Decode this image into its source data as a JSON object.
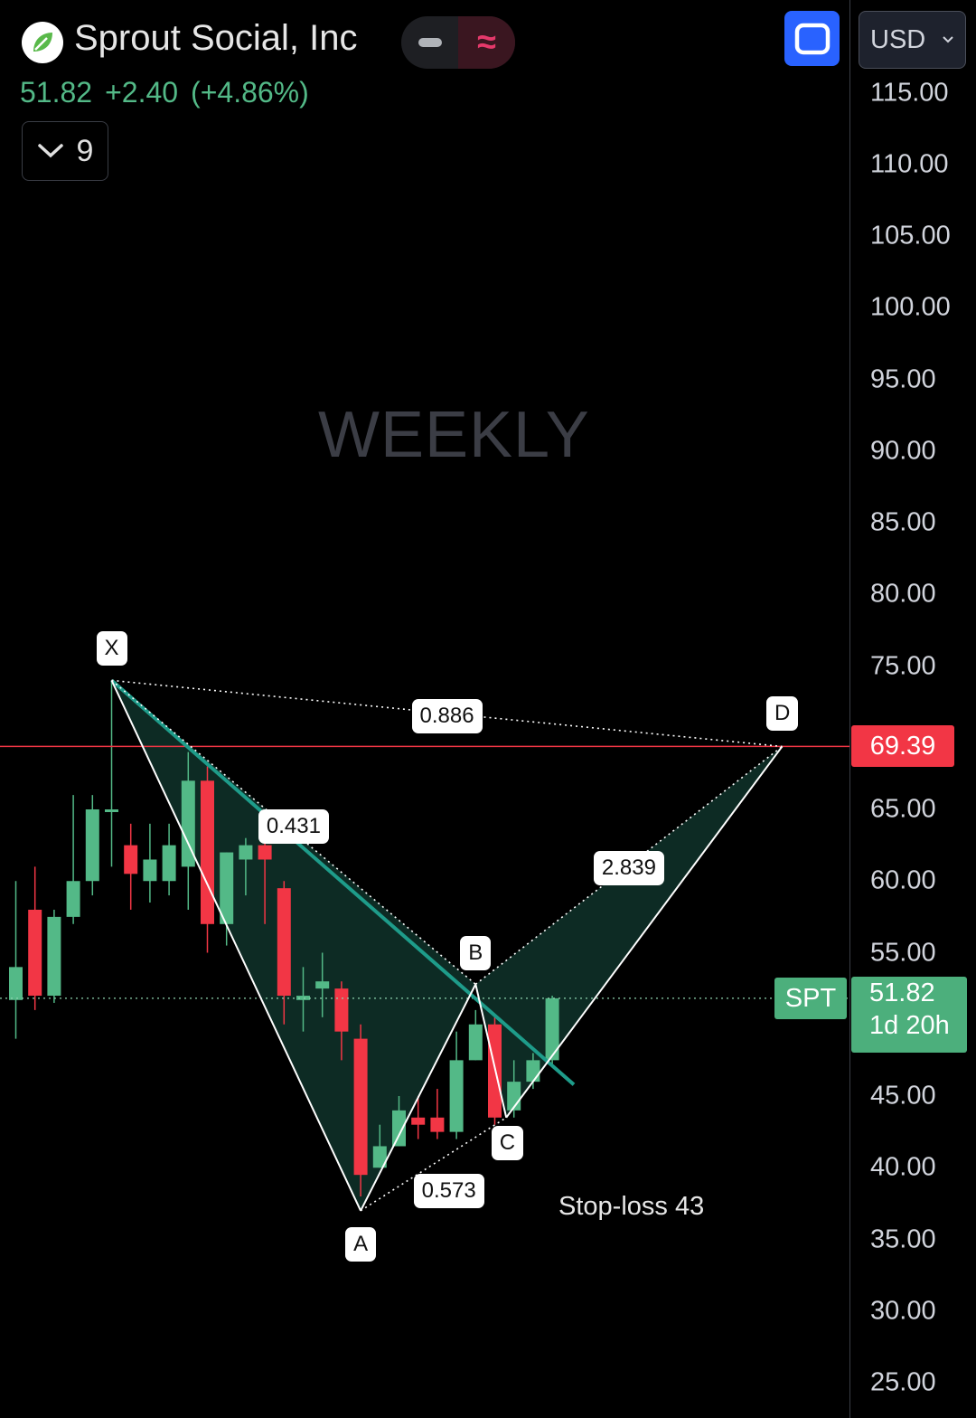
{
  "header": {
    "company": "Sprout Social, Inc",
    "price": "51.82",
    "change": "+2.40",
    "change_pct": "(+4.86%)",
    "collapse_count": "9",
    "currency": "USD",
    "pill_right_symbol": "≈"
  },
  "icons": {
    "logo": "sprout-leaf-icon",
    "collapse": "chevron-down-icon",
    "fullscreen": "fullscreen-icon",
    "currency_dropdown": "chevron-down-icon"
  },
  "colors": {
    "up": "#53b987",
    "down": "#f23645",
    "pattern_fill": "#0d2b24",
    "trendline": "#1e9c8a",
    "accent": "#2962ff"
  },
  "chart_data": {
    "type": "candlestick",
    "watermark": "WEEKLY",
    "ylim": [
      25,
      117
    ],
    "y_ticks": [
      "115.00",
      "110.00",
      "105.00",
      "100.00",
      "95.00",
      "90.00",
      "85.00",
      "80.00",
      "75.00",
      "65.00",
      "60.00",
      "55.00",
      "45.00",
      "40.00",
      "35.00",
      "30.00",
      "25.00"
    ],
    "last_price": {
      "symbol": "SPT",
      "value": "51.82",
      "countdown": "1d 20h"
    },
    "level_line": {
      "value": 69.39,
      "label": "69.39"
    },
    "candles": [
      {
        "o": 51.7,
        "h": 60.0,
        "c": 54.0,
        "l": 49.0
      },
      {
        "o": 58.0,
        "h": 61.0,
        "c": 52.0,
        "l": 51.0
      },
      {
        "o": 52.0,
        "h": 58.0,
        "c": 57.5,
        "l": 51.5
      },
      {
        "o": 57.5,
        "h": 66.0,
        "c": 60.0,
        "l": 57.0
      },
      {
        "o": 60.0,
        "h": 66.0,
        "c": 65.0,
        "l": 59.0
      },
      {
        "o": 65.0,
        "h": 74.0,
        "c": 65.0,
        "l": 61.0
      },
      {
        "o": 62.5,
        "h": 64.0,
        "c": 60.5,
        "l": 58.0
      },
      {
        "o": 60.0,
        "h": 64.0,
        "c": 61.5,
        "l": 58.5
      },
      {
        "o": 60.0,
        "h": 64.0,
        "c": 62.5,
        "l": 59.0
      },
      {
        "o": 61.0,
        "h": 69.0,
        "c": 67.0,
        "l": 58.0
      },
      {
        "o": 67.0,
        "h": 68.0,
        "c": 57.0,
        "l": 55.0
      },
      {
        "o": 57.0,
        "h": 62.0,
        "c": 62.0,
        "l": 55.5
      },
      {
        "o": 61.5,
        "h": 63.0,
        "c": 62.5,
        "l": 59.0
      },
      {
        "o": 62.5,
        "h": 64.0,
        "c": 61.5,
        "l": 57.0
      },
      {
        "o": 59.5,
        "h": 60.0,
        "c": 52.0,
        "l": 50.0
      },
      {
        "o": 51.7,
        "h": 54.0,
        "c": 52.0,
        "l": 49.5
      },
      {
        "o": 52.5,
        "h": 55.0,
        "c": 53.0,
        "l": 50.5
      },
      {
        "o": 52.5,
        "h": 53.0,
        "c": 49.5,
        "l": 47.5
      },
      {
        "o": 49.0,
        "h": 50.0,
        "c": 39.5,
        "l": 38.0
      },
      {
        "o": 40.0,
        "h": 43.0,
        "c": 41.5,
        "l": 40.0
      },
      {
        "o": 41.5,
        "h": 45.0,
        "c": 44.0,
        "l": 41.5
      },
      {
        "o": 43.5,
        "h": 45.0,
        "c": 43.0,
        "l": 42.0
      },
      {
        "o": 43.5,
        "h": 45.5,
        "c": 42.5,
        "l": 42.0
      },
      {
        "o": 42.5,
        "h": 49.5,
        "c": 47.5,
        "l": 42.0
      },
      {
        "o": 47.5,
        "h": 51.0,
        "c": 50.0,
        "l": 47.5
      },
      {
        "o": 50.0,
        "h": 50.5,
        "c": 43.5,
        "l": 43.0
      },
      {
        "o": 44.0,
        "h": 47.5,
        "c": 46.0,
        "l": 43.5
      },
      {
        "o": 46.0,
        "h": 48.0,
        "c": 47.5,
        "l": 45.5
      },
      {
        "o": 47.5,
        "h": 52.0,
        "c": 51.82,
        "l": 47.0
      }
    ],
    "harmonic_points": [
      {
        "label": "X",
        "value": 74.0
      },
      {
        "label": "A",
        "value": 37.0
      },
      {
        "label": "B",
        "value": 52.8
      },
      {
        "label": "C",
        "value": 43.5
      },
      {
        "label": "D",
        "value": 69.39
      }
    ],
    "ratios": [
      {
        "label": "0.886",
        "leg": "XD"
      },
      {
        "label": "0.431",
        "leg": "XB"
      },
      {
        "label": "0.573",
        "leg": "AC"
      },
      {
        "label": "2.839",
        "leg": "BD"
      }
    ],
    "annotation": "Stop-loss 43"
  }
}
